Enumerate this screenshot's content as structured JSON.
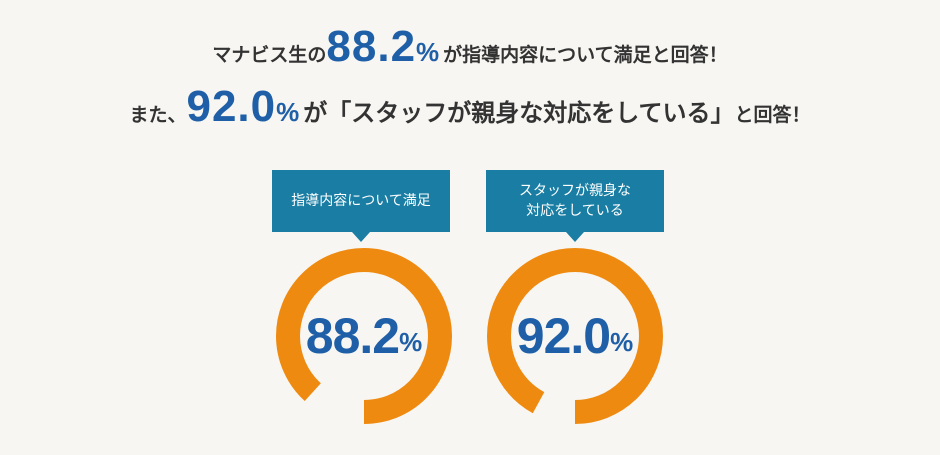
{
  "headline": {
    "line1": {
      "prefix": "マナビス生の",
      "value": "88.2",
      "percent": "%",
      "suffix": "が指導内容について満足と回答！"
    },
    "line2": {
      "prefix": "また、",
      "value": "92.0",
      "percent": "%",
      "middle": "が「スタッフが親身な対応をしている」",
      "suffix": "と回答！"
    }
  },
  "cards": [
    {
      "label_lines": [
        "指導内容について満足"
      ],
      "value": "88.2",
      "percent": "%",
      "fraction": 0.882
    },
    {
      "label_lines": [
        "スタッフが親身な",
        "対応をしている"
      ],
      "value": "92.0",
      "percent": "%",
      "fraction": 0.92
    }
  ],
  "colors": {
    "accent_orange": "#ef8a11",
    "number_blue": "#1f5fa8",
    "callout_teal": "#1a7ea4",
    "background": "#f8f6f2"
  }
}
